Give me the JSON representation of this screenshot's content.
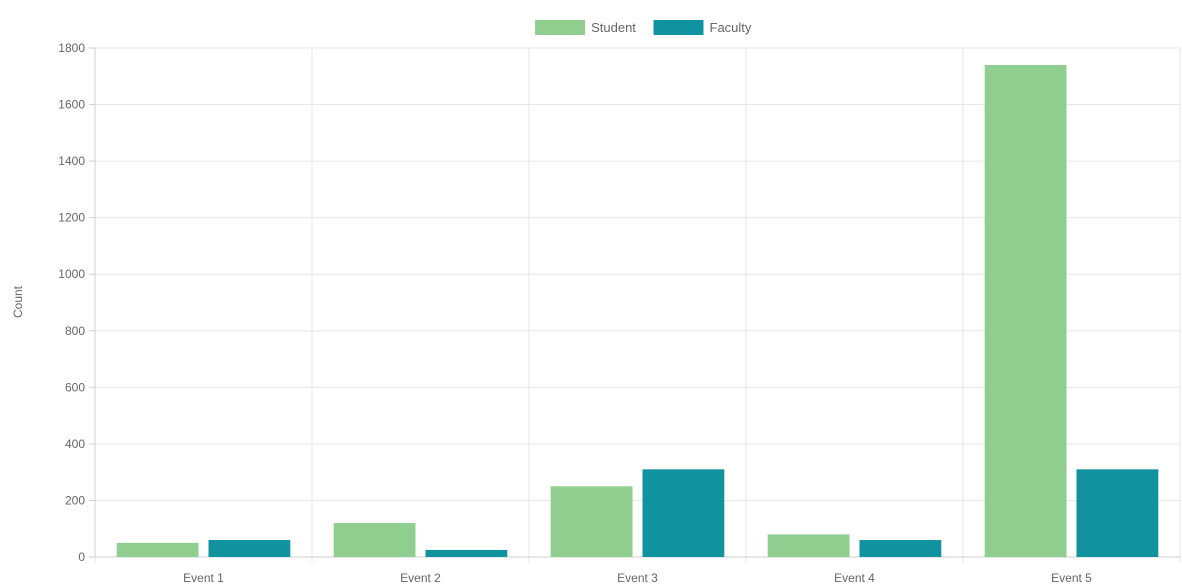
{
  "chart_data": {
    "type": "bar",
    "categories": [
      "Event 1",
      "Event 2",
      "Event 3",
      "Event 4",
      "Event 5"
    ],
    "series": [
      {
        "name": "Student",
        "color": "#8fce8e",
        "values": [
          50,
          120,
          250,
          80,
          1740
        ]
      },
      {
        "name": "Faculty",
        "color": "#10929f",
        "values": [
          60,
          25,
          310,
          60,
          310
        ]
      }
    ],
    "title": "",
    "xlabel": "",
    "ylabel": "Count",
    "ylim": [
      0,
      1800
    ],
    "yticks": [
      0,
      200,
      400,
      600,
      800,
      1000,
      1200,
      1400,
      1600,
      1800
    ],
    "ytick_labels": [
      "0",
      "200",
      "400",
      "600",
      "800",
      "1000",
      "1200",
      "1400",
      "1600",
      "1800"
    ],
    "grid": true,
    "legend": "top-center"
  }
}
